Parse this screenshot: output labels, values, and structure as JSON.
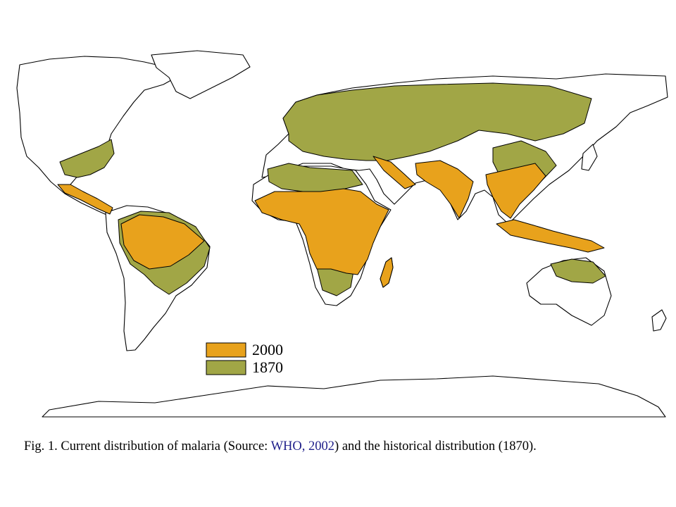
{
  "map": {
    "legend": [
      {
        "label": "2000",
        "color": "#e8a21c"
      },
      {
        "label": "1870",
        "color": "#a1a646"
      }
    ]
  },
  "caption": {
    "prefix": "Fig. 1.  Current distribution of malaria (Source: ",
    "link": "WHO, 2002",
    "suffix": ") and the historical distribution (1870)."
  }
}
